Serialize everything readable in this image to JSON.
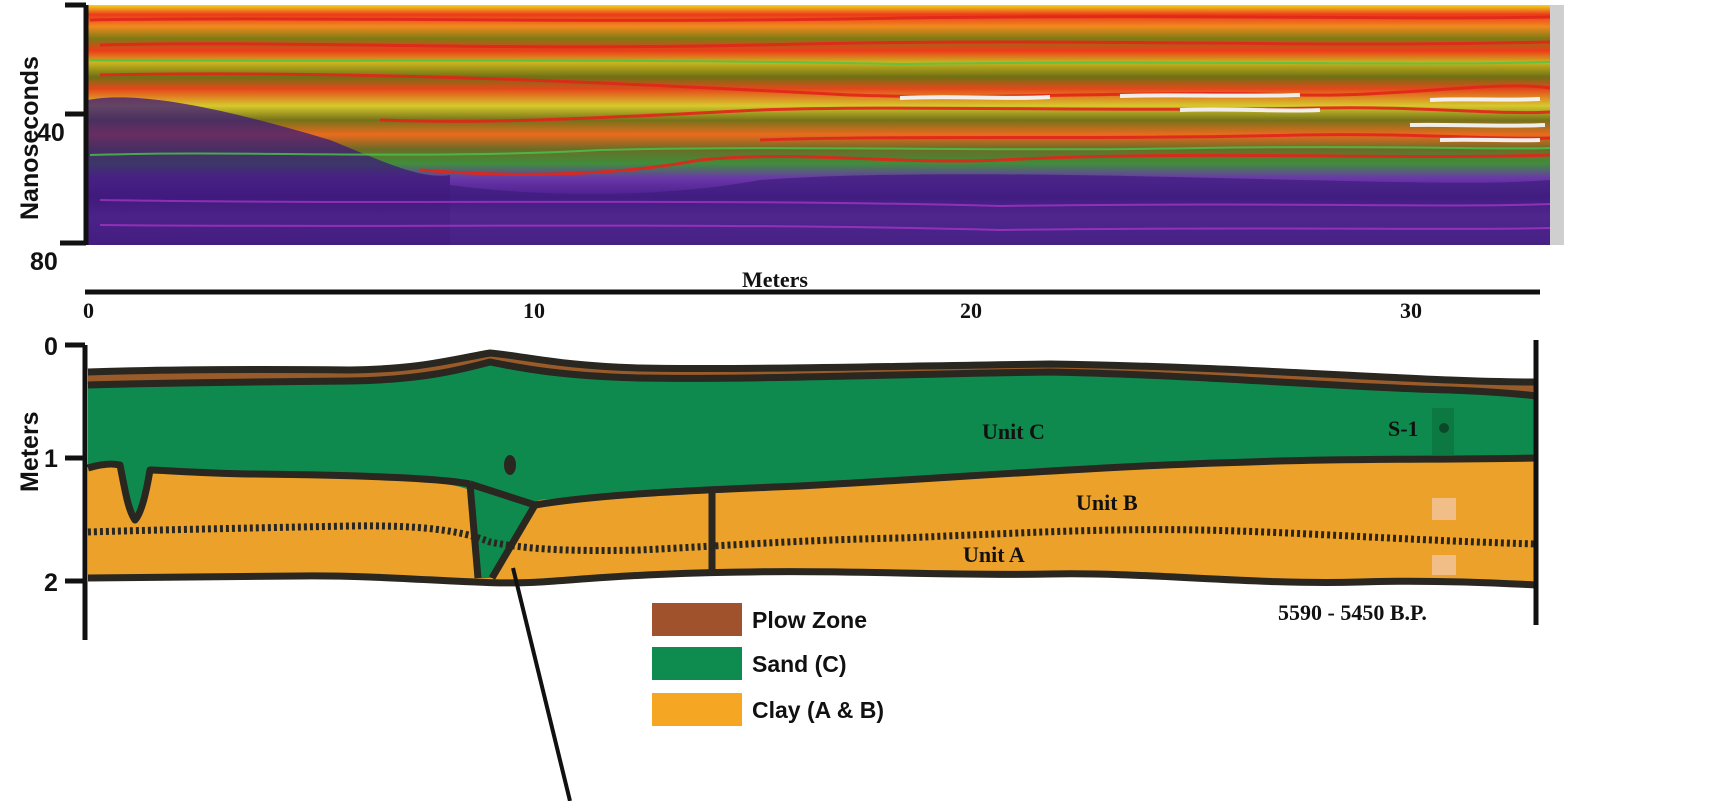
{
  "radargram": {
    "y_axis_label": "Nanoseconds",
    "y_ticks": [
      "40",
      "80"
    ]
  },
  "x_axis": {
    "label": "Meters",
    "ticks": [
      "0",
      "10",
      "20",
      "30"
    ]
  },
  "profile": {
    "y_axis_label": "Meters",
    "y_ticks": [
      "0",
      "1",
      "2"
    ],
    "unit_labels": {
      "unit_c": "Unit C",
      "unit_b": "Unit B",
      "unit_a": "Unit A"
    },
    "sample_label": "S-1",
    "date_label": "5590 - 5450  B.P."
  },
  "legend": {
    "items": [
      {
        "label": "Plow Zone",
        "color": "#A0522D"
      },
      {
        "label": "Sand (C)",
        "color": "#0E8C50"
      },
      {
        "label": "Clay (A & B)",
        "color": "#F5A623"
      }
    ]
  },
  "colors": {
    "plow_zone": "#9A5B2A",
    "sand": "#0F8A4E",
    "clay": "#ECA22A",
    "outline": "#2A2620"
  }
}
